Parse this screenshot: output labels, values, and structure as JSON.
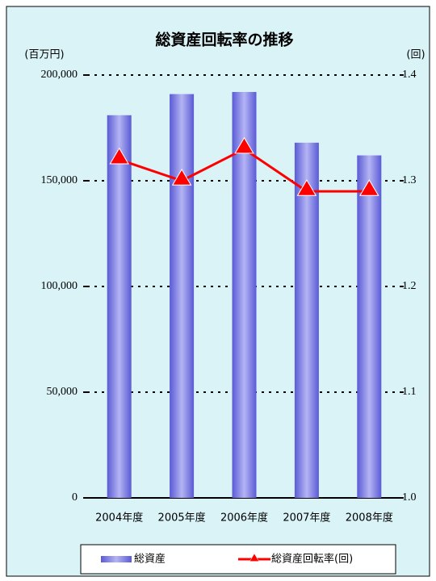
{
  "chart_data": {
    "type": "bar_line",
    "title": "総資産回転率の推移",
    "y_label": "(百万円)",
    "y2_label": "(回)",
    "categories": [
      "2004年度",
      "2005年度",
      "2006年度",
      "2007年度",
      "2008年度"
    ],
    "series": [
      {
        "name": "総資産",
        "type": "bar",
        "color": "#5a5ad6",
        "values": [
          181000,
          191000,
          192000,
          168000,
          162000
        ]
      },
      {
        "name": "総資産回転率(回)",
        "type": "line",
        "axis": "y2",
        "color": "#ff0000",
        "values": [
          1.32,
          1.3,
          1.33,
          1.29,
          1.29
        ]
      }
    ],
    "ylim": [
      0,
      200000
    ],
    "yticks": [
      0,
      {
        "value": 50000,
        "label": "50,000"
      },
      {
        "value": 100000,
        "label": "100,000"
      },
      {
        "value": 150000,
        "label": "150,000"
      },
      {
        "value": 200000,
        "label": "200,000"
      }
    ],
    "y2lim": [
      1,
      1.4
    ],
    "y2ticks": [
      {
        "value": 1,
        "label": "1.0"
      },
      1.1,
      1.2,
      1.3,
      1.4
    ],
    "grid": true
  }
}
